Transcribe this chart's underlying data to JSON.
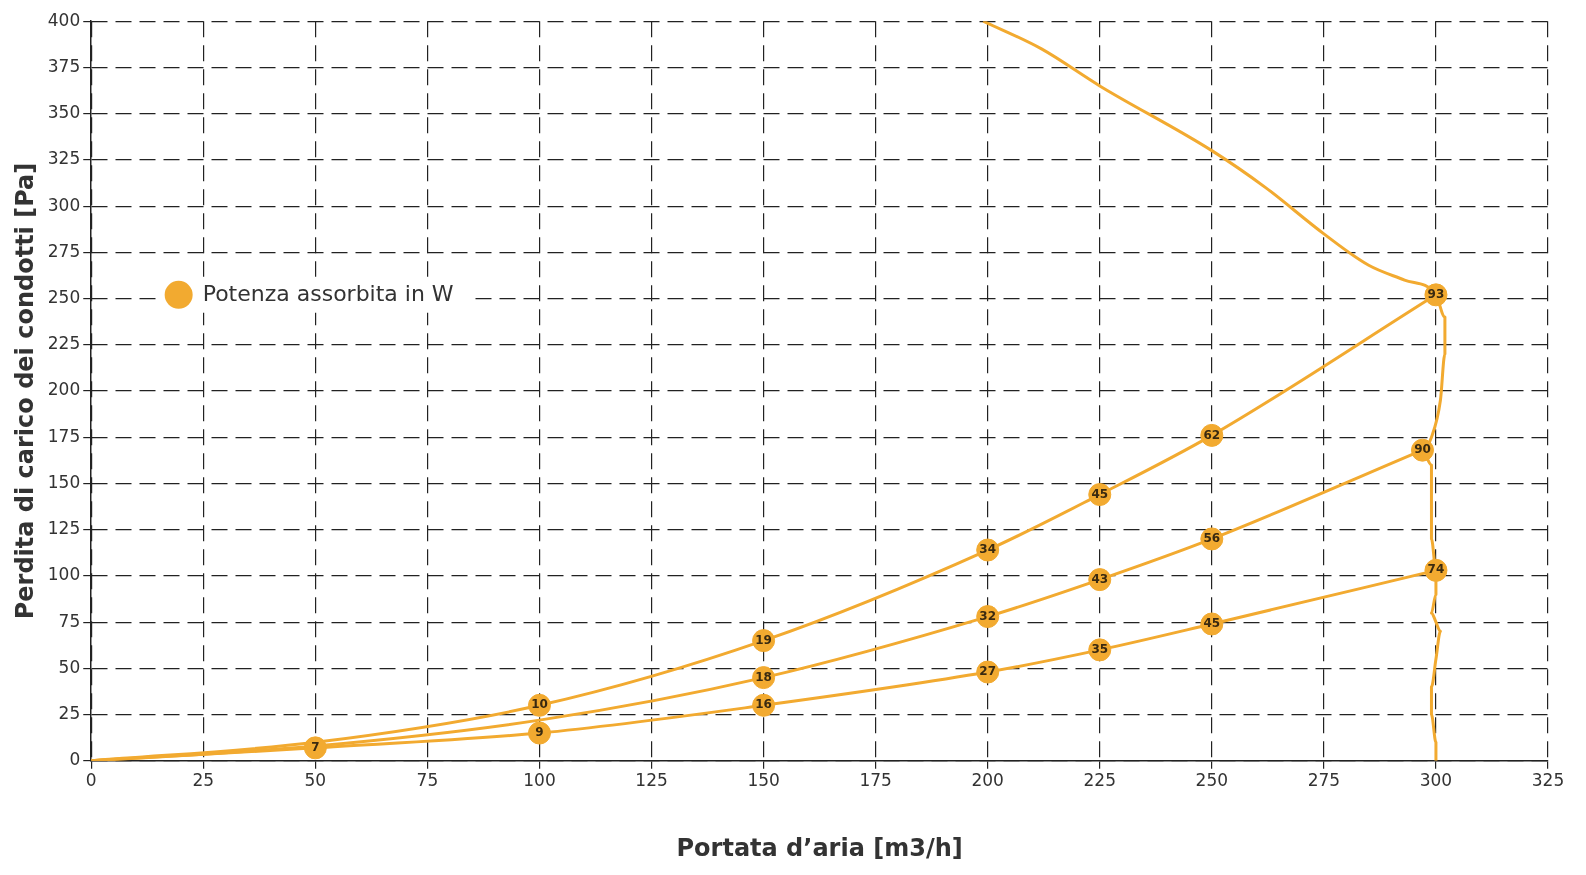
{
  "chart_data": {
    "type": "line",
    "xlabel": "Portata d’aria [m3/h]",
    "ylabel": "Perdita di carico dei condotti [Pa]",
    "xlim": [
      0,
      325
    ],
    "xticks": [
      0,
      25,
      50,
      75,
      100,
      125,
      150,
      175,
      200,
      225,
      250,
      275,
      300,
      325
    ],
    "ylim": [
      0,
      400
    ],
    "yticks": [
      0,
      25,
      50,
      75,
      100,
      125,
      150,
      175,
      200,
      225,
      250,
      275,
      300,
      325,
      350,
      375,
      400
    ],
    "grid": true,
    "legend": "left",
    "marker": "none",
    "line_style": "solid",
    "series": [
      {
        "color": "#f2aa30",
        "x": [
          0,
          50,
          100,
          150,
          200,
          225,
          250,
          300
        ],
        "values": [
          0,
          10,
          30,
          65,
          114,
          144,
          176,
          252
        ]
      },
      {
        "color": "#f2aa30",
        "x": [
          0,
          50,
          100,
          150,
          200,
          225,
          250,
          297
        ],
        "values": [
          0,
          8,
          22,
          45,
          78,
          98,
          120,
          168
        ]
      },
      {
        "color": "#f2aa30",
        "x": [
          0,
          50,
          100,
          150,
          200,
          225,
          250,
          300
        ],
        "values": [
          0,
          7,
          15,
          30,
          48,
          60,
          74,
          103
        ]
      },
      {
        "color": "#f2aa30",
        "x": [
          199,
          212,
          225,
          250,
          262,
          275,
          285,
          293,
          300,
          302,
          302,
          301,
          299,
          297,
          299,
          299,
          299,
          300,
          300,
          299,
          300,
          301,
          300,
          299,
          299,
          300,
          300
        ],
        "values": [
          400,
          385,
          365,
          330,
          310,
          285,
          268,
          260,
          252,
          240,
          220,
          195,
          175,
          168,
          160,
          140,
          120,
          103,
          90,
          80,
          75,
          70,
          55,
          40,
          25,
          10,
          0
        ]
      },
      {
        "type": "scatter",
        "name": "Potenza assorbita in W",
        "color": "#f2aa30",
        "marker": "circle",
        "x": [
          50,
          100,
          150,
          200,
          225,
          250,
          300,
          100,
          150,
          200,
          225,
          250,
          297,
          150,
          200,
          225,
          250,
          300
        ],
        "values": [
          7,
          15,
          30,
          48,
          60,
          74,
          103,
          30,
          45,
          78,
          98,
          120,
          168,
          65,
          114,
          144,
          176,
          252
        ]
      }
    ],
    "annotations": [
      {
        "text": "7",
        "x": 50,
        "y": 7
      },
      {
        "text": "9",
        "x": 100,
        "y": 15
      },
      {
        "text": "16",
        "x": 150,
        "y": 30
      },
      {
        "text": "27",
        "x": 200,
        "y": 48
      },
      {
        "text": "35",
        "x": 225,
        "y": 60
      },
      {
        "text": "45",
        "x": 250,
        "y": 74
      },
      {
        "text": "74",
        "x": 300,
        "y": 103
      },
      {
        "text": "10",
        "x": 100,
        "y": 30
      },
      {
        "text": "18",
        "x": 150,
        "y": 45
      },
      {
        "text": "32",
        "x": 200,
        "y": 78
      },
      {
        "text": "43",
        "x": 225,
        "y": 98
      },
      {
        "text": "56",
        "x": 250,
        "y": 120
      },
      {
        "text": "90",
        "x": 297,
        "y": 168
      },
      {
        "text": "19",
        "x": 150,
        "y": 65
      },
      {
        "text": "34",
        "x": 200,
        "y": 114
      },
      {
        "text": "45",
        "x": 225,
        "y": 144
      },
      {
        "text": "62",
        "x": 250,
        "y": 176
      },
      {
        "text": "93",
        "x": 300,
        "y": 252
      }
    ]
  }
}
